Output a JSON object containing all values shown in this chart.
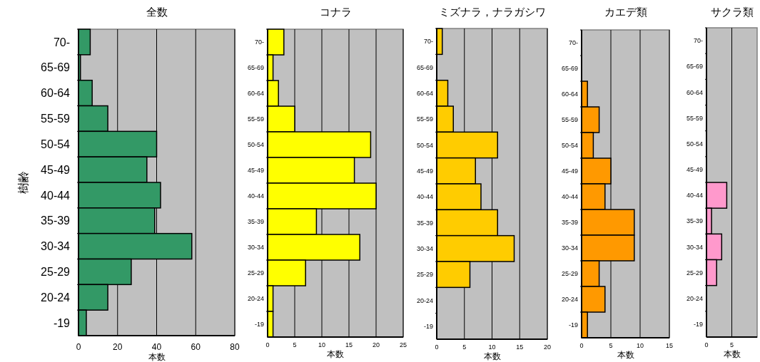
{
  "chart_data": [
    {
      "type": "bar",
      "orientation": "horizontal",
      "title": "全数",
      "xlabel": "本数",
      "ylabel": "樹齢",
      "categories": [
        "70-",
        "65-69",
        "60-64",
        "55-59",
        "50-54",
        "45-49",
        "40-44",
        "35-39",
        "30-34",
        "25-29",
        "20-24",
        "-19"
      ],
      "values": [
        6,
        1,
        7,
        15,
        40,
        35,
        42,
        39,
        58,
        27,
        15,
        4
      ],
      "color": "#339966",
      "xlim": [
        0,
        80
      ],
      "xticks": [
        0,
        20,
        40,
        60,
        80
      ],
      "grid": "x"
    },
    {
      "type": "bar",
      "orientation": "horizontal",
      "title": "コナラ",
      "xlabel": "本数",
      "categories": [
        "70-",
        "65-69",
        "60-64",
        "55-59",
        "50-54",
        "45-49",
        "40-44",
        "35-39",
        "30-34",
        "25-29",
        "20-24",
        "-19"
      ],
      "values": [
        3,
        1,
        2,
        5,
        19,
        16,
        20,
        9,
        17,
        7,
        1,
        1
      ],
      "color": "#ffff00",
      "xlim": [
        0,
        25
      ],
      "xticks": [
        0,
        5,
        10,
        15,
        20,
        25
      ],
      "grid": "x"
    },
    {
      "type": "bar",
      "orientation": "horizontal",
      "title": "ミズナラ，ナラガシワ",
      "xlabel": "本数",
      "categories": [
        "70-",
        "65-69",
        "60-64",
        "55-59",
        "50-54",
        "45-49",
        "40-44",
        "35-39",
        "30-34",
        "25-29",
        "20-24",
        "-19"
      ],
      "values": [
        1,
        0,
        2,
        3,
        11,
        7,
        8,
        11,
        14,
        6,
        0,
        0
      ],
      "color": "#ffcc00",
      "xlim": [
        0,
        20
      ],
      "xticks": [
        0,
        5,
        10,
        15,
        20
      ],
      "grid": "x"
    },
    {
      "type": "bar",
      "orientation": "horizontal",
      "title": "カエデ類",
      "xlabel": "本数",
      "categories": [
        "70-",
        "65-69",
        "60-64",
        "55-59",
        "50-54",
        "45-49",
        "40-44",
        "35-39",
        "30-34",
        "25-29",
        "20-24",
        "-19"
      ],
      "values": [
        0,
        0,
        1,
        3,
        2,
        5,
        4,
        9,
        9,
        3,
        4,
        1
      ],
      "color": "#ff9900",
      "xlim": [
        0,
        15
      ],
      "xticks": [
        0,
        5,
        10,
        15
      ],
      "grid": "x"
    },
    {
      "type": "bar",
      "orientation": "horizontal",
      "title": "サクラ類",
      "xlabel": "本数",
      "categories": [
        "70-",
        "65-69",
        "60-64",
        "55-59",
        "50-54",
        "45-49",
        "40-44",
        "35-39",
        "30-34",
        "25-29",
        "20-24",
        "-19"
      ],
      "values": [
        0,
        0,
        0,
        0,
        0,
        0,
        4,
        1,
        3,
        2,
        0,
        0
      ],
      "color": "#ff99cc",
      "xlim": [
        0,
        10
      ],
      "xticks": [
        0,
        5
      ],
      "grid": "x"
    }
  ]
}
